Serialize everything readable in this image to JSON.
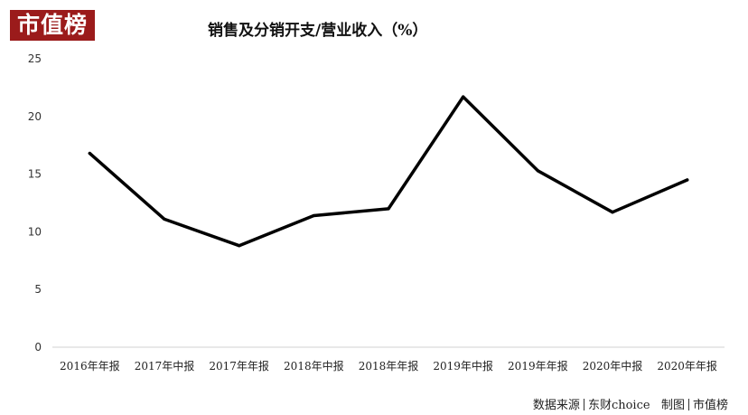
{
  "logo": {
    "text": "市值榜"
  },
  "chart_data": {
    "type": "line",
    "title": "销售及分销开支/营业收入（%）",
    "categories": [
      "2016年年报",
      "2017年中报",
      "2017年年报",
      "2018年中报",
      "2018年年报",
      "2019年中报",
      "2019年年报",
      "2020年中报",
      "2020年年报"
    ],
    "series": [
      {
        "values": [
          16.8,
          11.1,
          8.8,
          11.4,
          12.0,
          21.7,
          15.3,
          11.7,
          14.5
        ]
      }
    ],
    "ylim": [
      0,
      25
    ],
    "yticks": [
      0,
      5,
      10,
      15,
      20,
      25
    ],
    "grid": false,
    "line_color": "#000000"
  },
  "source": {
    "part1": "数据来源",
    "part2": "东财choice",
    "part3": "制图",
    "part4": "市值榜"
  }
}
